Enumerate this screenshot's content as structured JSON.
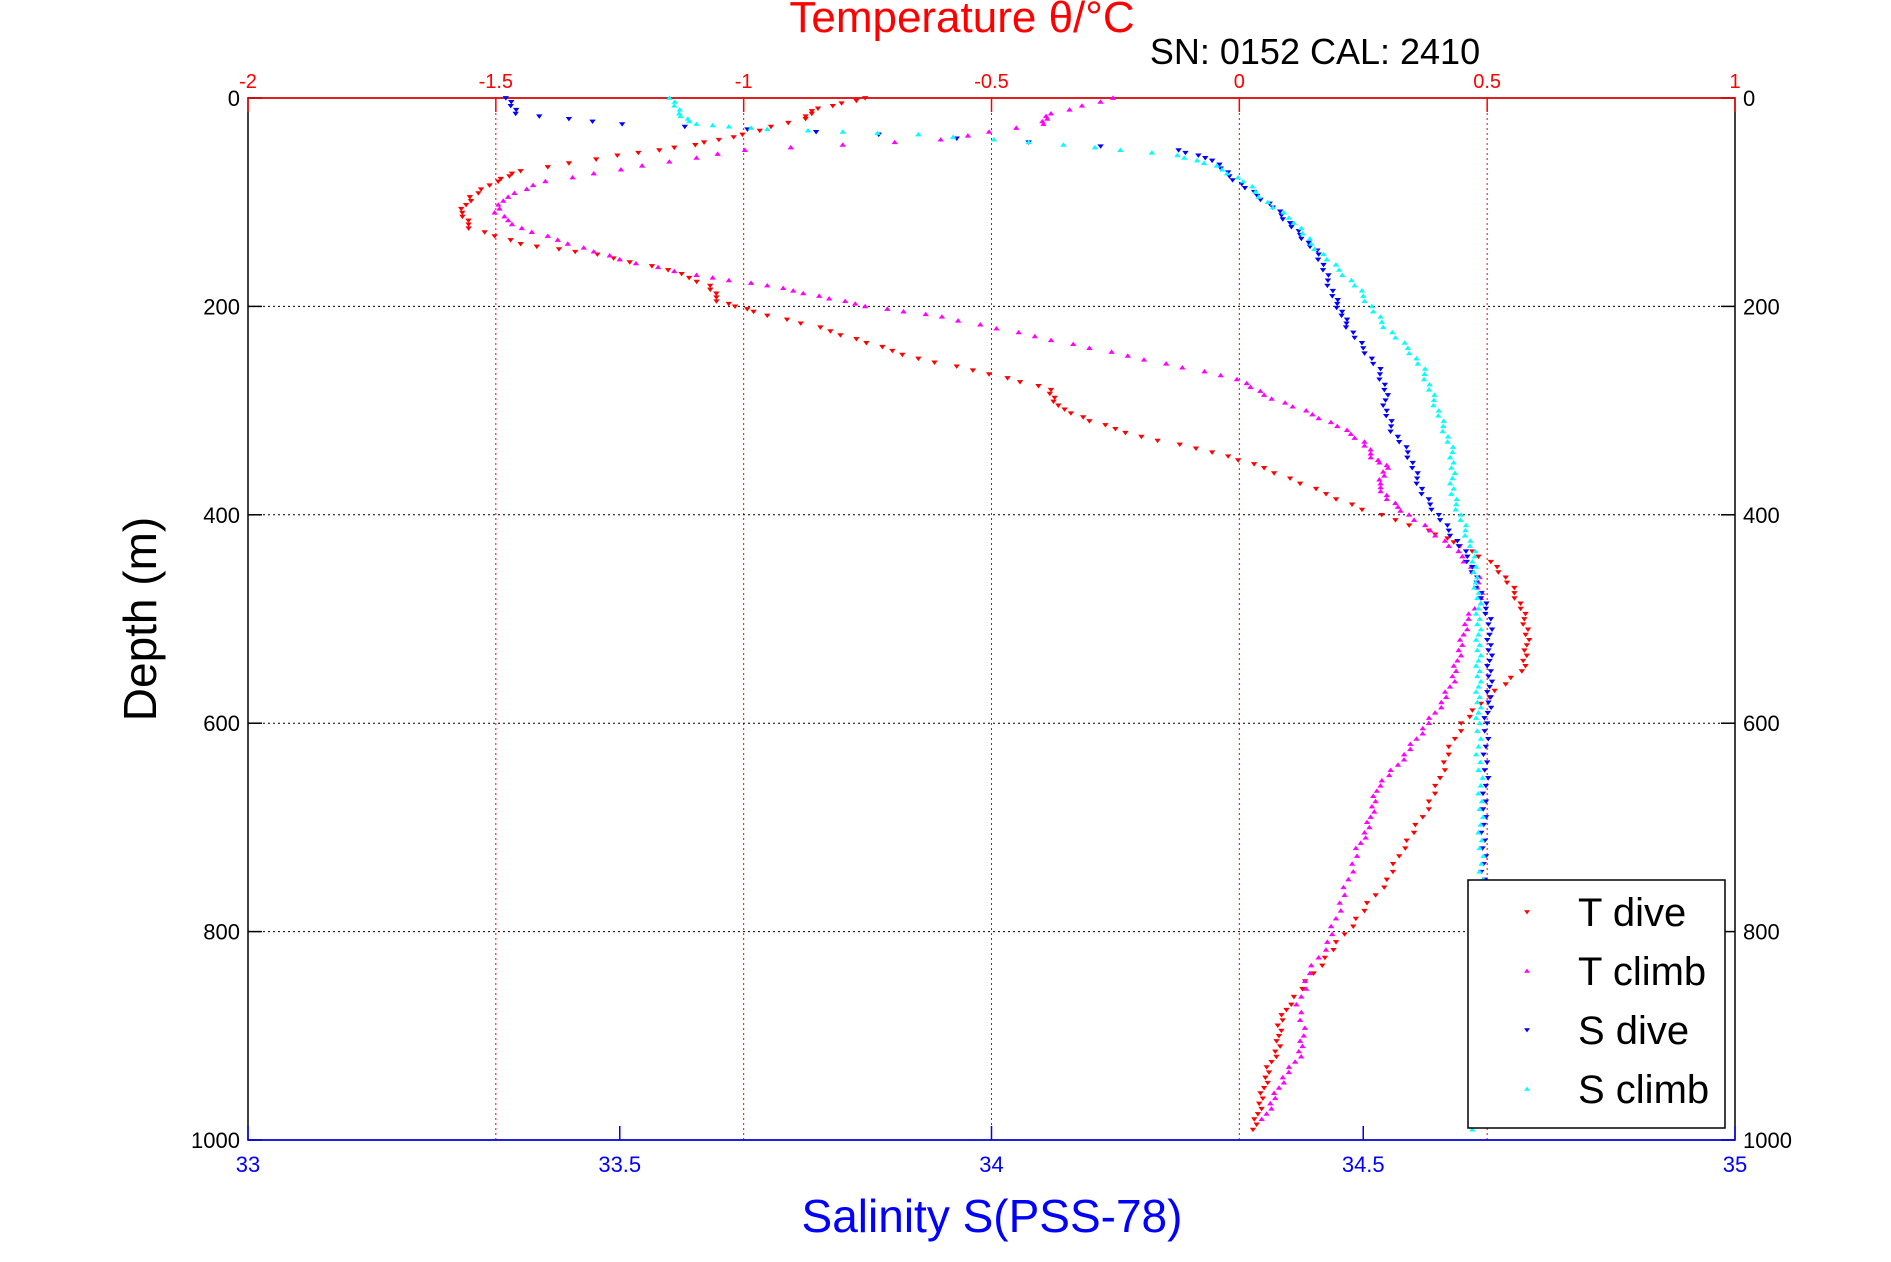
{
  "chart_data": {
    "type": "scatter",
    "title": "Temperature θ/°C",
    "subtitle": "SN: 0152  CAL: 2410",
    "xlabel": "Salinity S(PSS-78)",
    "ylabel": "Depth (m)",
    "top_axis": {
      "label": "Temperature θ/°C",
      "range": [
        -2,
        1
      ],
      "ticks": [
        -2,
        -1.5,
        -1,
        -0.5,
        0,
        0.5,
        1
      ],
      "tick_labels": [
        "-2",
        "-1.5",
        "-1",
        "-0.5",
        "0",
        "0.5",
        "1"
      ],
      "color": "#ff0000",
      "grid": true
    },
    "bottom_axis": {
      "label": "Salinity S(PSS-78)",
      "range": [
        33,
        35
      ],
      "ticks": [
        33,
        33.5,
        34,
        34.5,
        35
      ],
      "tick_labels": [
        "33",
        "33.5",
        "34",
        "34.5",
        "35"
      ],
      "color": "#0000ff"
    },
    "y_axis": {
      "label": "Depth (m)",
      "range": [
        0,
        1000
      ],
      "reversed": true,
      "ticks": [
        0,
        200,
        400,
        600,
        800,
        1000
      ],
      "tick_labels": [
        "0",
        "200",
        "400",
        "600",
        "800",
        "1000"
      ],
      "grid": true
    },
    "legend": {
      "position": "bottom-right"
    },
    "series": [
      {
        "name": "T dive",
        "axis": "temperature",
        "color": "#ff0000",
        "marker": "triangle-down",
        "points": [
          [
            -0.75,
            0
          ],
          [
            -0.85,
            10
          ],
          [
            -0.88,
            20
          ],
          [
            -1.0,
            35
          ],
          [
            -1.1,
            45
          ],
          [
            -1.25,
            55
          ],
          [
            -1.45,
            70
          ],
          [
            -1.5,
            80
          ],
          [
            -1.55,
            95
          ],
          [
            -1.57,
            110
          ],
          [
            -1.55,
            125
          ],
          [
            -1.45,
            140
          ],
          [
            -1.3,
            150
          ],
          [
            -1.15,
            165
          ],
          [
            -1.07,
            180
          ],
          [
            -1.05,
            195
          ],
          [
            -0.98,
            205
          ],
          [
            -0.85,
            220
          ],
          [
            -0.75,
            235
          ],
          [
            -0.65,
            250
          ],
          [
            -0.5,
            265
          ],
          [
            -0.38,
            280
          ],
          [
            -0.37,
            295
          ],
          [
            -0.3,
            310
          ],
          [
            -0.2,
            325
          ],
          [
            -0.05,
            340
          ],
          [
            0.05,
            355
          ],
          [
            0.15,
            375
          ],
          [
            0.25,
            395
          ],
          [
            0.38,
            415
          ],
          [
            0.45,
            430
          ],
          [
            0.52,
            450
          ],
          [
            0.55,
            470
          ],
          [
            0.57,
            490
          ],
          [
            0.58,
            510
          ],
          [
            0.58,
            530
          ],
          [
            0.57,
            550
          ],
          [
            0.5,
            575
          ],
          [
            0.45,
            600
          ],
          [
            0.42,
            630
          ],
          [
            0.4,
            660
          ],
          [
            0.37,
            690
          ],
          [
            0.33,
            720
          ],
          [
            0.3,
            750
          ],
          [
            0.25,
            780
          ],
          [
            0.2,
            810
          ],
          [
            0.15,
            840
          ],
          [
            0.1,
            870
          ],
          [
            0.08,
            890
          ],
          [
            0.08,
            910
          ],
          [
            0.06,
            930
          ],
          [
            0.05,
            950
          ],
          [
            0.04,
            970
          ],
          [
            0.03,
            990
          ]
        ]
      },
      {
        "name": "T climb",
        "axis": "temperature",
        "color": "#ff00ff",
        "marker": "triangle-up",
        "points": [
          [
            -0.25,
            0
          ],
          [
            -0.38,
            15
          ],
          [
            -0.4,
            25
          ],
          [
            -0.6,
            40
          ],
          [
            -1.0,
            50
          ],
          [
            -1.2,
            65
          ],
          [
            -1.4,
            80
          ],
          [
            -1.48,
            95
          ],
          [
            -1.5,
            110
          ],
          [
            -1.45,
            125
          ],
          [
            -1.35,
            140
          ],
          [
            -1.25,
            155
          ],
          [
            -1.1,
            170
          ],
          [
            -0.95,
            180
          ],
          [
            -0.85,
            190
          ],
          [
            -0.75,
            200
          ],
          [
            -0.6,
            210
          ],
          [
            -0.45,
            225
          ],
          [
            -0.3,
            240
          ],
          [
            -0.15,
            255
          ],
          [
            0.0,
            270
          ],
          [
            0.05,
            285
          ],
          [
            0.13,
            300
          ],
          [
            0.2,
            315
          ],
          [
            0.25,
            330
          ],
          [
            0.27,
            345
          ],
          [
            0.3,
            355
          ],
          [
            0.28,
            370
          ],
          [
            0.3,
            385
          ],
          [
            0.34,
            400
          ],
          [
            0.4,
            420
          ],
          [
            0.45,
            440
          ],
          [
            0.48,
            460
          ],
          [
            0.49,
            480
          ],
          [
            0.46,
            500
          ],
          [
            0.45,
            520
          ],
          [
            0.44,
            540
          ],
          [
            0.43,
            560
          ],
          [
            0.41,
            580
          ],
          [
            0.38,
            600
          ],
          [
            0.35,
            620
          ],
          [
            0.32,
            640
          ],
          [
            0.28,
            660
          ],
          [
            0.27,
            680
          ],
          [
            0.26,
            700
          ],
          [
            0.24,
            720
          ],
          [
            0.22,
            750
          ],
          [
            0.2,
            780
          ],
          [
            0.18,
            810
          ],
          [
            0.14,
            840
          ],
          [
            0.12,
            870
          ],
          [
            0.13,
            900
          ],
          [
            0.12,
            920
          ],
          [
            0.09,
            940
          ],
          [
            0.07,
            960
          ],
          [
            0.05,
            980
          ]
        ]
      },
      {
        "name": "S dive",
        "axis": "salinity",
        "color": "#0000ff",
        "marker": "triangle-down",
        "points": [
          [
            33.35,
            0
          ],
          [
            33.36,
            15
          ],
          [
            33.5,
            25
          ],
          [
            33.85,
            35
          ],
          [
            34.25,
            50
          ],
          [
            34.3,
            60
          ],
          [
            34.32,
            75
          ],
          [
            34.35,
            90
          ],
          [
            34.38,
            105
          ],
          [
            34.4,
            120
          ],
          [
            34.42,
            135
          ],
          [
            34.44,
            150
          ],
          [
            34.45,
            170
          ],
          [
            34.46,
            190
          ],
          [
            34.47,
            205
          ],
          [
            34.48,
            220
          ],
          [
            34.5,
            240
          ],
          [
            34.52,
            260
          ],
          [
            34.53,
            280
          ],
          [
            34.53,
            300
          ],
          [
            34.54,
            320
          ],
          [
            34.56,
            340
          ],
          [
            34.57,
            360
          ],
          [
            34.58,
            380
          ],
          [
            34.6,
            400
          ],
          [
            34.62,
            420
          ],
          [
            34.64,
            440
          ],
          [
            34.65,
            460
          ],
          [
            34.66,
            480
          ],
          [
            34.67,
            500
          ],
          [
            34.67,
            520
          ],
          [
            34.67,
            540
          ],
          [
            34.67,
            560
          ],
          [
            34.67,
            580
          ],
          [
            34.665,
            600
          ],
          [
            34.665,
            630
          ],
          [
            34.665,
            660
          ],
          [
            34.662,
            690
          ],
          [
            34.662,
            720
          ],
          [
            34.662,
            750
          ],
          [
            34.66,
            770
          ]
        ]
      },
      {
        "name": "S climb",
        "axis": "salinity",
        "color": "#00ffff",
        "marker": "triangle-up",
        "points": [
          [
            33.57,
            0
          ],
          [
            33.58,
            15
          ],
          [
            33.6,
            25
          ],
          [
            33.7,
            30
          ],
          [
            33.9,
            35
          ],
          [
            34.1,
            45
          ],
          [
            34.25,
            55
          ],
          [
            34.3,
            65
          ],
          [
            34.34,
            80
          ],
          [
            34.37,
            100
          ],
          [
            34.41,
            120
          ],
          [
            34.43,
            140
          ],
          [
            34.46,
            160
          ],
          [
            34.49,
            180
          ],
          [
            34.51,
            200
          ],
          [
            34.53,
            220
          ],
          [
            34.56,
            240
          ],
          [
            34.58,
            260
          ],
          [
            34.59,
            280
          ],
          [
            34.6,
            300
          ],
          [
            34.61,
            320
          ],
          [
            34.62,
            340
          ],
          [
            34.62,
            360
          ],
          [
            34.62,
            380
          ],
          [
            34.63,
            400
          ],
          [
            34.64,
            420
          ],
          [
            34.65,
            440
          ],
          [
            34.65,
            460
          ],
          [
            34.655,
            480
          ],
          [
            34.655,
            500
          ],
          [
            34.655,
            520
          ],
          [
            34.655,
            540
          ],
          [
            34.655,
            560
          ],
          [
            34.655,
            580
          ],
          [
            34.655,
            600
          ],
          [
            34.655,
            630
          ],
          [
            34.658,
            660
          ],
          [
            34.658,
            690
          ],
          [
            34.658,
            720
          ],
          [
            34.66,
            750
          ],
          [
            34.65,
            990
          ]
        ]
      }
    ]
  }
}
